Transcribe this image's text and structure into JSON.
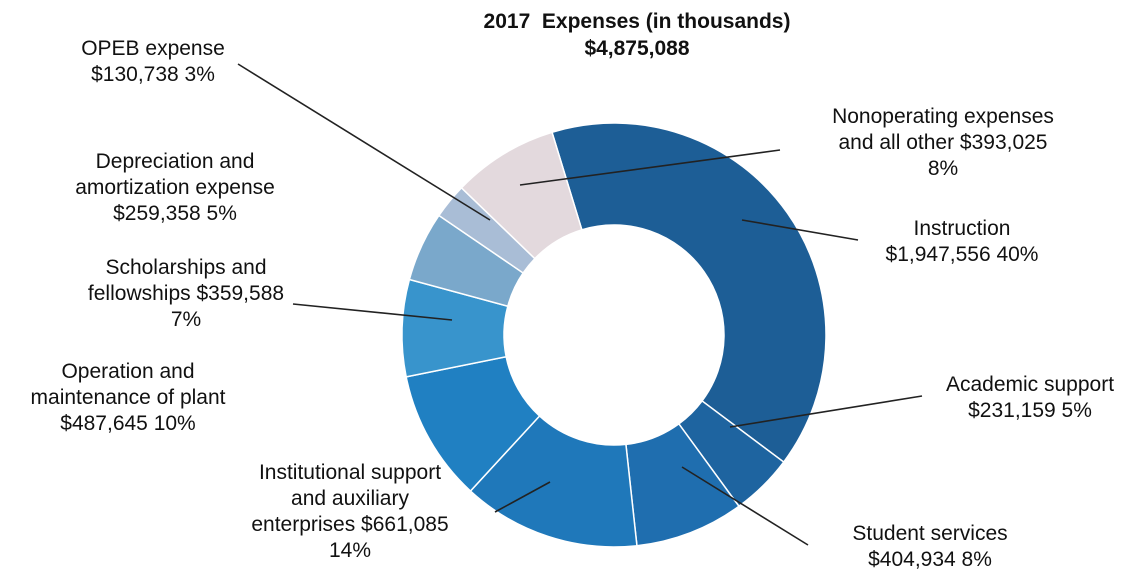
{
  "chart_data": {
    "type": "pie",
    "variant": "donut",
    "title": "2017  Expenses (in thousands)",
    "subtitle": "$4,875,088",
    "slices": [
      {
        "name": "Instruction",
        "value": 1947556,
        "value_label": "$1,947,556",
        "percent": "40%",
        "color": "#1d5e96",
        "label_lines": [
          "Instruction",
          "$1,947,556  40%"
        ]
      },
      {
        "name": "Academic support",
        "value": 231159,
        "value_label": "$231,159",
        "percent": "5%",
        "color": "#1e64a0",
        "label_lines": [
          "Academic support",
          "$231,159  5%"
        ]
      },
      {
        "name": "Student services",
        "value": 404934,
        "value_label": "$404,934",
        "percent": "8%",
        "color": "#1f6eaf",
        "label_lines": [
          "Student services",
          "$404,934  8%"
        ]
      },
      {
        "name": "Institutional support and auxiliary enterprises",
        "value": 661085,
        "value_label": "$661,085",
        "percent": "14%",
        "color": "#1f78ba",
        "label_lines": [
          "Institutional support",
          "and auxiliary",
          "enterprises  $661,085",
          "14%"
        ]
      },
      {
        "name": "Operation and maintenance of plant",
        "value": 487645,
        "value_label": "$487,645",
        "percent": "10%",
        "color": "#2080c2",
        "label_lines": [
          "Operation and",
          "maintenance of plant",
          "$487,645  10%"
        ]
      },
      {
        "name": "Scholarships and fellowships",
        "value": 359588,
        "value_label": "$359,588",
        "percent": "7%",
        "color": "#3894cc",
        "label_lines": [
          "Scholarships and",
          "fellowships  $359,588",
          "7%"
        ]
      },
      {
        "name": "Depreciation and amortization expense",
        "value": 259358,
        "value_label": "$259,358",
        "percent": "5%",
        "color": "#7aa8cb",
        "label_lines": [
          "Depreciation and",
          "amortization expense",
          "$259,358  5%"
        ]
      },
      {
        "name": "OPEB expense",
        "value": 130738,
        "value_label": "$130,738",
        "percent": "3%",
        "color": "#a9bdd6",
        "label_lines": [
          "OPEB expense",
          "$130,738  3%"
        ]
      },
      {
        "name": "Nonoperating expenses and all other",
        "value": 393025,
        "value_label": "$393,025",
        "percent": "8%",
        "color": "#e3d9dd",
        "label_lines": [
          "Nonoperating expenses",
          "and all other  $393,025",
          "8%"
        ]
      }
    ]
  }
}
